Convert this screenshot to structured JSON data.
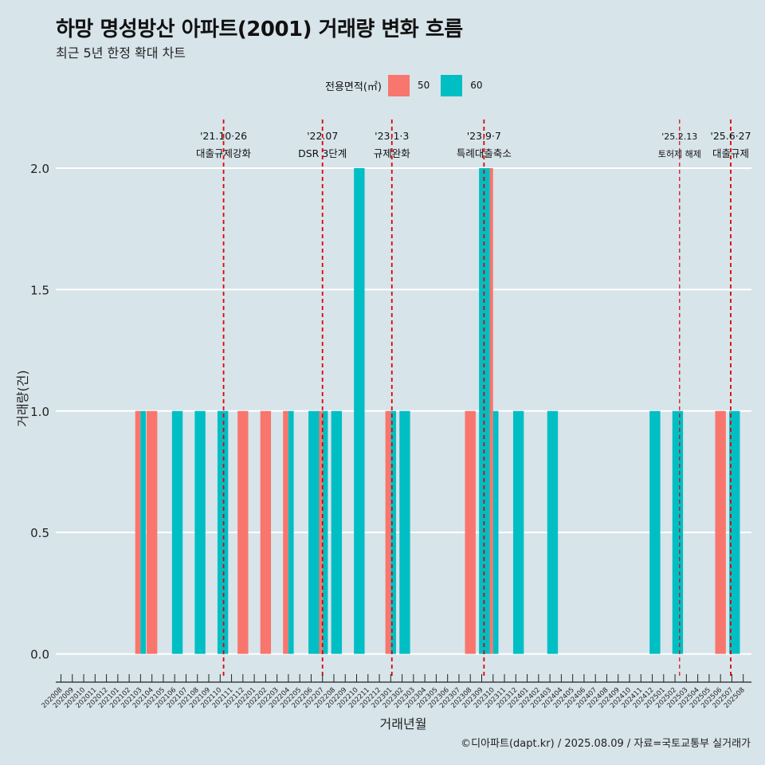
{
  "title": "하망 명성방산 아파트(2001) 거래량 변화 흐름",
  "subtitle": "최근 5년 한정 확대 차트",
  "footer": "©디아파트(dapt.kr) / 2025.08.09 / 자료=국토교통부 실거래가",
  "colors": {
    "background": "#d7e4ea",
    "series_50": "#f8766d",
    "series_60": "#00bfc4",
    "event_line": "#e00000",
    "grid": "#ffffff"
  },
  "chart_data": {
    "type": "bar",
    "xlabel": "거래년월",
    "ylabel": "거래량(건)",
    "ylim": [
      -0.09,
      2.2
    ],
    "yticks": [
      0.0,
      0.5,
      1.0,
      1.5,
      2.0
    ],
    "ytick_labels": [
      "0.0",
      "0.5",
      "1.0",
      "1.5",
      "2.0"
    ],
    "legend_title": "전용면적(㎡)",
    "legend_position": "top",
    "grid": true,
    "categories": [
      "202008",
      "202009",
      "202010",
      "202011",
      "202012",
      "202101",
      "202102",
      "202103",
      "202104",
      "202105",
      "202106",
      "202107",
      "202108",
      "202109",
      "202110",
      "202111",
      "202112",
      "202201",
      "202202",
      "202203",
      "202204",
      "202205",
      "202206",
      "202207",
      "202208",
      "202209",
      "202210",
      "202211",
      "202212",
      "202301",
      "202302",
      "202303",
      "202304",
      "202305",
      "202306",
      "202307",
      "202308",
      "202309",
      "202310",
      "202311",
      "202312",
      "202401",
      "202402",
      "202403",
      "202404",
      "202405",
      "202406",
      "202407",
      "202408",
      "202409",
      "202410",
      "202411",
      "202412",
      "202501",
      "202502",
      "202503",
      "202504",
      "202505",
      "202506",
      "202507",
      "202508"
    ],
    "series": [
      {
        "name": "50",
        "color": "#f8766d",
        "points": [
          [
            "202103",
            1
          ],
          [
            "202104",
            1
          ],
          [
            "202112",
            1
          ],
          [
            "202202",
            1
          ],
          [
            "202204",
            1
          ],
          [
            "202207",
            1
          ],
          [
            "202301",
            1
          ],
          [
            "202308",
            1
          ],
          [
            "202310",
            2
          ],
          [
            "202506",
            1
          ]
        ]
      },
      {
        "name": "60",
        "color": "#00bfc4",
        "points": [
          [
            "202103",
            1
          ],
          [
            "202106",
            1
          ],
          [
            "202108",
            1
          ],
          [
            "202110",
            1
          ],
          [
            "202204",
            1
          ],
          [
            "202206",
            1
          ],
          [
            "202207",
            1
          ],
          [
            "202208",
            1
          ],
          [
            "202210",
            2
          ],
          [
            "202301",
            1
          ],
          [
            "202302",
            1
          ],
          [
            "202309",
            2
          ],
          [
            "202310",
            1
          ],
          [
            "202312",
            1
          ],
          [
            "202403",
            1
          ],
          [
            "202412",
            1
          ],
          [
            "202502",
            1
          ],
          [
            "202507",
            1
          ]
        ]
      }
    ],
    "events": [
      {
        "x": "202110",
        "offset": 0.3,
        "date": "'21.10·26",
        "label": "대출규제강화",
        "small": false
      },
      {
        "x": "202207",
        "offset": 0.0,
        "date": "'22.07",
        "label": "DSR 3단계",
        "small": false
      },
      {
        "x": "202301",
        "offset": 0.1,
        "date": "'23.1·3",
        "label": "규제완화",
        "small": false
      },
      {
        "x": "202309",
        "offset": 0.2,
        "date": "'23.9·7",
        "label": "특례대출축소",
        "small": false
      },
      {
        "x": "202502",
        "offset": 0.4,
        "date": "'25.2.13",
        "label": "토허제 해제",
        "small": true
      },
      {
        "x": "202506",
        "offset": 0.9,
        "date": "'25.6·27",
        "label": "대출규제",
        "small": false
      }
    ]
  }
}
